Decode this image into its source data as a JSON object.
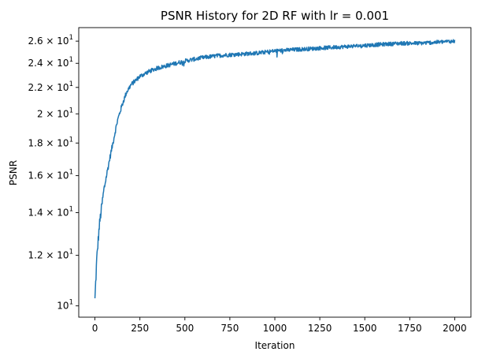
{
  "chart_data": {
    "type": "line",
    "title": "PSNR History for 2D RF with lr = 0.001",
    "xlabel": "Iteration",
    "ylabel": "PSNR",
    "x_scale": "linear",
    "y_scale": "log",
    "xlim": [
      -90,
      2090
    ],
    "ylim": [
      9.6,
      27.3
    ],
    "x_ticks": [
      0,
      250,
      500,
      750,
      1000,
      1250,
      1500,
      1750,
      2000
    ],
    "x_tick_labels": [
      "0",
      "250",
      "500",
      "750",
      "1000",
      "1250",
      "1500",
      "1750",
      "2000"
    ],
    "y_ticks": [
      {
        "value": 10,
        "mantissa": "",
        "base": "10",
        "exp": "1"
      },
      {
        "value": 12,
        "mantissa": "1.2 × ",
        "base": "10",
        "exp": "1"
      },
      {
        "value": 14,
        "mantissa": "1.4 × ",
        "base": "10",
        "exp": "1"
      },
      {
        "value": 16,
        "mantissa": "1.6 × ",
        "base": "10",
        "exp": "1"
      },
      {
        "value": 18,
        "mantissa": "1.8 × ",
        "base": "10",
        "exp": "1"
      },
      {
        "value": 20,
        "mantissa": "2 × ",
        "base": "10",
        "exp": "1"
      },
      {
        "value": 22,
        "mantissa": "2.2 × ",
        "base": "10",
        "exp": "1"
      },
      {
        "value": 24,
        "mantissa": "2.4 × ",
        "base": "10",
        "exp": "1"
      },
      {
        "value": 26,
        "mantissa": "2.6 × ",
        "base": "10",
        "exp": "1"
      }
    ],
    "grid": false,
    "legend": "none",
    "series": [
      {
        "color": "#1f77b4",
        "x": [
          0,
          10,
          25,
          50,
          75,
          100,
          125,
          150,
          175,
          200,
          250,
          300,
          350,
          400,
          450,
          500,
          600,
          700,
          800,
          900,
          1000,
          1100,
          1200,
          1300,
          1400,
          1500,
          1600,
          1700,
          1800,
          1900,
          2000
        ],
        "values": [
          10.2,
          11.8,
          13.4,
          15.2,
          16.6,
          18.0,
          19.5,
          20.6,
          21.6,
          22.2,
          22.9,
          23.3,
          23.6,
          23.8,
          24.0,
          24.2,
          24.5,
          24.7,
          24.8,
          24.9,
          25.1,
          25.2,
          25.3,
          25.4,
          25.5,
          25.6,
          25.7,
          25.8,
          25.8,
          25.9,
          26.0
        ]
      }
    ]
  }
}
